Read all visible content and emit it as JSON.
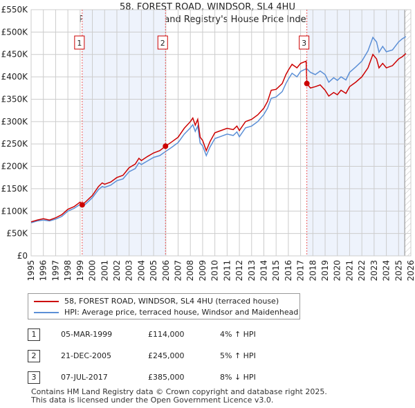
{
  "chart_data": {
    "type": "line",
    "title": "58, FOREST ROAD, WINDSOR, SL4 4HU",
    "subtitle": "Price paid vs. HM Land Registry's House Price Index (HPI)",
    "xlim": [
      1995,
      2026
    ],
    "ylim": [
      0,
      550000
    ],
    "x_ticks": [
      "1995",
      "1996",
      "1997",
      "1998",
      "1999",
      "2000",
      "2001",
      "2002",
      "2003",
      "2004",
      "2005",
      "2006",
      "2007",
      "2008",
      "2009",
      "2010",
      "2011",
      "2012",
      "2013",
      "2014",
      "2015",
      "2016",
      "2017",
      "2018",
      "2019",
      "2020",
      "2021",
      "2022",
      "2023",
      "2024",
      "2025",
      "2026"
    ],
    "y_ticks": [
      "£0",
      "£50K",
      "£100K",
      "£150K",
      "£200K",
      "£250K",
      "£300K",
      "£350K",
      "£400K",
      "£450K",
      "£500K",
      "£550K"
    ],
    "grid": true,
    "colors": {
      "property": "#cc0000",
      "hpi": "#5b8fd6",
      "band": "#eef3fc"
    },
    "series": [
      {
        "name": "58, FOREST ROAD, WINDSOR, SL4 4HU (terraced house)",
        "x": [
          1995,
          1995.5,
          1996,
          1996.5,
          1997,
          1997.5,
          1998,
          1998.5,
          1999,
          1999.17,
          1999.5,
          2000,
          2000.5,
          2000.8,
          2001,
          2001.5,
          2002,
          2002.5,
          2003,
          2003.5,
          2003.8,
          2004,
          2004.5,
          2005,
          2005.5,
          2005.97,
          2006.5,
          2007,
          2007.5,
          2008,
          2008.2,
          2008.4,
          2008.6,
          2008.8,
          2009,
          2009.3,
          2009.6,
          2010,
          2010.5,
          2011,
          2011.5,
          2011.8,
          2012,
          2012.5,
          2013,
          2013.5,
          2014,
          2014.3,
          2014.6,
          2015,
          2015.5,
          2015.8,
          2016,
          2016.3,
          2016.7,
          2017,
          2017.45,
          2017.51,
          2017.8,
          2018.2,
          2018.6,
          2019,
          2019.3,
          2019.7,
          2020,
          2020.3,
          2020.7,
          2021,
          2021.5,
          2022,
          2022.5,
          2022.9,
          2023.2,
          2023.4,
          2023.7,
          2024,
          2024.5,
          2025,
          2025.3,
          2025.6
        ],
        "values": [
          76,
          80,
          83,
          80,
          85,
          92,
          104,
          110,
          120,
          114,
          122,
          135,
          155,
          163,
          160,
          165,
          175,
          180,
          197,
          205,
          218,
          213,
          222,
          230,
          235,
          245,
          255,
          265,
          285,
          300,
          308,
          292,
          305,
          265,
          258,
          235,
          255,
          275,
          280,
          285,
          282,
          290,
          280,
          300,
          305,
          315,
          330,
          345,
          370,
          372,
          385,
          405,
          415,
          428,
          420,
          430,
          435,
          385,
          375,
          378,
          382,
          370,
          357,
          365,
          360,
          370,
          363,
          378,
          388,
          400,
          420,
          450,
          440,
          420,
          430,
          420,
          425,
          440,
          445,
          452
        ]
      },
      {
        "name": "HPI: Average price, terraced house, Windsor and Maidenhead",
        "x": [
          1995,
          1995.5,
          1996,
          1996.5,
          1997,
          1997.5,
          1998,
          1998.5,
          1999,
          1999.17,
          1999.5,
          2000,
          2000.5,
          2000.8,
          2001,
          2001.5,
          2002,
          2002.5,
          2003,
          2003.5,
          2003.8,
          2004,
          2004.5,
          2005,
          2005.5,
          2005.97,
          2006.5,
          2007,
          2007.5,
          2008,
          2008.2,
          2008.4,
          2008.6,
          2008.8,
          2009,
          2009.3,
          2009.6,
          2010,
          2010.5,
          2011,
          2011.5,
          2011.8,
          2012,
          2012.5,
          2013,
          2013.5,
          2014,
          2014.3,
          2014.6,
          2015,
          2015.5,
          2015.8,
          2016,
          2016.3,
          2016.7,
          2017,
          2017.45,
          2017.51,
          2017.8,
          2018.2,
          2018.6,
          2019,
          2019.3,
          2019.7,
          2020,
          2020.3,
          2020.7,
          2021,
          2021.5,
          2022,
          2022.5,
          2022.9,
          2023.2,
          2023.4,
          2023.7,
          2024,
          2024.5,
          2025,
          2025.3,
          2025.6
        ],
        "values": [
          74,
          78,
          80,
          78,
          82,
          88,
          100,
          106,
          115,
          110,
          117,
          130,
          148,
          155,
          153,
          158,
          168,
          172,
          188,
          195,
          208,
          204,
          212,
          220,
          224,
          233,
          243,
          253,
          272,
          286,
          293,
          278,
          290,
          252,
          246,
          224,
          243,
          262,
          267,
          272,
          269,
          277,
          266,
          286,
          290,
          300,
          316,
          330,
          352,
          355,
          367,
          385,
          395,
          408,
          400,
          412,
          418,
          418,
          410,
          405,
          413,
          405,
          388,
          398,
          392,
          400,
          393,
          410,
          422,
          435,
          458,
          488,
          478,
          455,
          468,
          456,
          460,
          478,
          485,
          490
        ]
      }
    ],
    "value_unit": "£K",
    "sales": [
      {
        "label": "1",
        "x": 1999.17,
        "value": 114
      },
      {
        "label": "2",
        "x": 2005.97,
        "value": 245
      },
      {
        "label": "3",
        "x": 2017.51,
        "value": 385
      }
    ],
    "forecast_from": 2025.5
  },
  "legend": {
    "property": "58, FOREST ROAD, WINDSOR, SL4 4HU (terraced house)",
    "hpi": "HPI: Average price, terraced house, Windsor and Maidenhead"
  },
  "transactions": [
    {
      "num": "1",
      "date": "05-MAR-1999",
      "price": "£114,000",
      "delta": "4% ↑ HPI"
    },
    {
      "num": "2",
      "date": "21-DEC-2005",
      "price": "£245,000",
      "delta": "5% ↑ HPI"
    },
    {
      "num": "3",
      "date": "07-JUL-2017",
      "price": "£385,000",
      "delta": "8% ↓ HPI"
    }
  ],
  "footer": [
    "Contains HM Land Registry data © Crown copyright and database right 2025.",
    "This data is licensed under the Open Government Licence v3.0."
  ]
}
